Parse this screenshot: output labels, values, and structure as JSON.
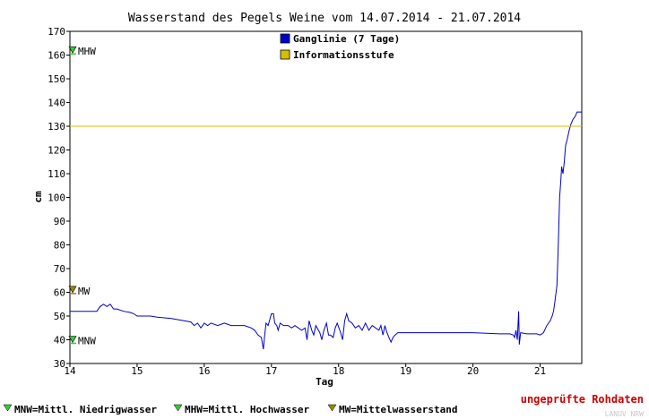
{
  "chart_data": {
    "type": "line",
    "title": "Wasserstand des Pegels Weine vom 14.07.2014 - 21.07.2014",
    "xlabel": "Tag",
    "ylabel": "cm",
    "xlim": [
      14,
      21.62
    ],
    "ylim": [
      30,
      170
    ],
    "x_ticks": [
      "14",
      "15",
      "16",
      "17",
      "18",
      "19",
      "20",
      "21"
    ],
    "y_ticks": [
      "30",
      "40",
      "50",
      "60",
      "70",
      "80",
      "90",
      "100",
      "110",
      "120",
      "130",
      "140",
      "150",
      "160",
      "170"
    ],
    "grid": false,
    "legend": {
      "placement": "top-center",
      "entries": [
        {
          "label": "Ganglinie (7 Tage)",
          "color": "#0000cc"
        },
        {
          "label": "Informationsstufe",
          "color": "#d4c000"
        }
      ]
    },
    "series": [
      {
        "name": "Ganglinie (7 Tage)",
        "color": "#0000cc",
        "points": [
          [
            14.0,
            52
          ],
          [
            14.4,
            52
          ],
          [
            14.45,
            54
          ],
          [
            14.5,
            55
          ],
          [
            14.55,
            54
          ],
          [
            14.6,
            55
          ],
          [
            14.65,
            53
          ],
          [
            14.7,
            53
          ],
          [
            14.8,
            52
          ],
          [
            14.9,
            51.5
          ],
          [
            14.95,
            51
          ],
          [
            15.0,
            50
          ],
          [
            15.2,
            50
          ],
          [
            15.3,
            49.5
          ],
          [
            15.5,
            49
          ],
          [
            15.7,
            48
          ],
          [
            15.8,
            47.5
          ],
          [
            15.85,
            46
          ],
          [
            15.9,
            47
          ],
          [
            15.95,
            45
          ],
          [
            16.0,
            47
          ],
          [
            16.05,
            46
          ],
          [
            16.1,
            47
          ],
          [
            16.2,
            46
          ],
          [
            16.3,
            47
          ],
          [
            16.4,
            46
          ],
          [
            16.5,
            46
          ],
          [
            16.6,
            46
          ],
          [
            16.7,
            45
          ],
          [
            16.75,
            44
          ],
          [
            16.8,
            42
          ],
          [
            16.85,
            41
          ],
          [
            16.88,
            36
          ],
          [
            16.9,
            42
          ],
          [
            16.92,
            47
          ],
          [
            16.95,
            46
          ],
          [
            17.0,
            51
          ],
          [
            17.03,
            51
          ],
          [
            17.05,
            47
          ],
          [
            17.08,
            46
          ],
          [
            17.1,
            44
          ],
          [
            17.13,
            47
          ],
          [
            17.18,
            46
          ],
          [
            17.25,
            46
          ],
          [
            17.3,
            45
          ],
          [
            17.35,
            46
          ],
          [
            17.4,
            45
          ],
          [
            17.45,
            44
          ],
          [
            17.5,
            45
          ],
          [
            17.53,
            40
          ],
          [
            17.56,
            48
          ],
          [
            17.6,
            44
          ],
          [
            17.63,
            42
          ],
          [
            17.66,
            46
          ],
          [
            17.72,
            43
          ],
          [
            17.75,
            40
          ],
          [
            17.78,
            44
          ],
          [
            17.82,
            47
          ],
          [
            17.85,
            42
          ],
          [
            17.88,
            42
          ],
          [
            17.92,
            41
          ],
          [
            17.95,
            45
          ],
          [
            17.98,
            47
          ],
          [
            18.03,
            43
          ],
          [
            18.06,
            40
          ],
          [
            18.09,
            48
          ],
          [
            18.12,
            51
          ],
          [
            18.15,
            48
          ],
          [
            18.2,
            47
          ],
          [
            18.25,
            45
          ],
          [
            18.3,
            46
          ],
          [
            18.35,
            44
          ],
          [
            18.4,
            47
          ],
          [
            18.45,
            44
          ],
          [
            18.5,
            46
          ],
          [
            18.55,
            45
          ],
          [
            18.6,
            44
          ],
          [
            18.63,
            46
          ],
          [
            18.66,
            42
          ],
          [
            18.69,
            46
          ],
          [
            18.72,
            43
          ],
          [
            18.75,
            41
          ],
          [
            18.78,
            39
          ],
          [
            18.81,
            41
          ],
          [
            18.84,
            42
          ],
          [
            18.88,
            43
          ],
          [
            19.0,
            43
          ],
          [
            19.5,
            43
          ],
          [
            20.0,
            43
          ],
          [
            20.4,
            42.5
          ],
          [
            20.55,
            42.5
          ],
          [
            20.6,
            42
          ],
          [
            20.62,
            41
          ],
          [
            20.64,
            44
          ],
          [
            20.66,
            40
          ],
          [
            20.68,
            52
          ],
          [
            20.69,
            38
          ],
          [
            20.71,
            43
          ],
          [
            20.8,
            42.5
          ],
          [
            20.95,
            42.5
          ],
          [
            21.0,
            42
          ],
          [
            21.05,
            43
          ],
          [
            21.1,
            46
          ],
          [
            21.15,
            48
          ],
          [
            21.18,
            50
          ],
          [
            21.2,
            52
          ],
          [
            21.22,
            56
          ],
          [
            21.25,
            63
          ],
          [
            21.27,
            80
          ],
          [
            21.29,
            100
          ],
          [
            21.31,
            108
          ],
          [
            21.32,
            113
          ],
          [
            21.34,
            110
          ],
          [
            21.36,
            115
          ],
          [
            21.38,
            122
          ],
          [
            21.4,
            124
          ],
          [
            21.43,
            128
          ],
          [
            21.46,
            131
          ],
          [
            21.49,
            133
          ],
          [
            21.52,
            134
          ],
          [
            21.55,
            136
          ],
          [
            21.62,
            136
          ]
        ]
      },
      {
        "name": "Informationsstufe",
        "color": "#d4c000",
        "points": [
          [
            14.0,
            130
          ],
          [
            21.62,
            130
          ]
        ]
      }
    ],
    "markers": [
      {
        "label": "MNW",
        "value": 40,
        "color": "#33cc33"
      },
      {
        "label": "MW",
        "value": 61,
        "color": "#998800"
      },
      {
        "label": "MHW",
        "value": 162,
        "color": "#33cc33"
      }
    ],
    "footer_legend": [
      {
        "label": "MNW=Mittl. Niedrigwasser",
        "color": "#33cc33"
      },
      {
        "label": "MHW=Mittl. Hochwasser",
        "color": "#33cc33"
      },
      {
        "label": "MW=Mittelwasserstand",
        "color": "#998800"
      }
    ],
    "annotation": "ungeprüfte Rohdaten",
    "watermark": "LANUV NRW"
  }
}
